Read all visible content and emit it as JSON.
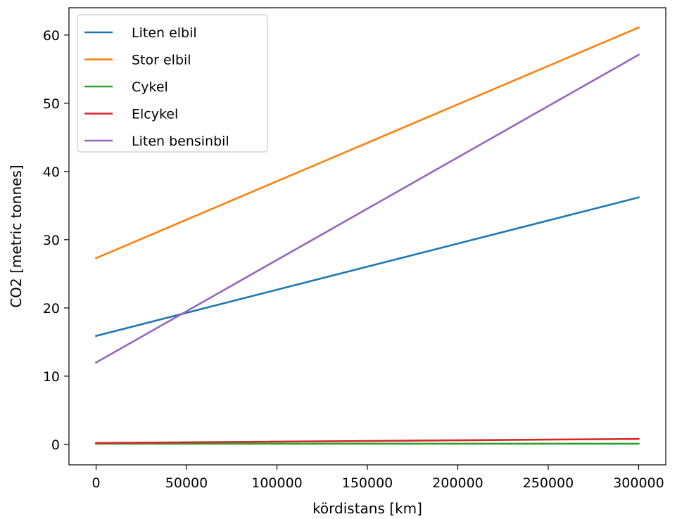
{
  "chart_data": {
    "type": "line",
    "title": "",
    "xlabel": "kördistans [km]",
    "ylabel": "CO2 [metric tonnes]",
    "xlim": [
      -15000,
      315000
    ],
    "ylim": [
      -3,
      64
    ],
    "xticks": [
      0,
      50000,
      100000,
      150000,
      200000,
      250000,
      300000
    ],
    "xtick_labels": [
      "0",
      "50000",
      "100000",
      "150000",
      "200000",
      "250000",
      "300000"
    ],
    "yticks": [
      0,
      10,
      20,
      30,
      40,
      50,
      60
    ],
    "ytick_labels": [
      "0",
      "10",
      "20",
      "30",
      "40",
      "50",
      "60"
    ],
    "grid": false,
    "legend_position": "top-left",
    "x": [
      0,
      300000
    ],
    "series": [
      {
        "name": "Liten elbil",
        "color": "#1f77b4",
        "values": [
          15.9,
          36.2
        ]
      },
      {
        "name": "Stor elbil",
        "color": "#ff7f0e",
        "values": [
          27.3,
          61.1
        ]
      },
      {
        "name": "Cykel",
        "color": "#2ca02c",
        "values": [
          0.1,
          0.1
        ]
      },
      {
        "name": "Elcykel",
        "color": "#d62728",
        "values": [
          0.2,
          0.8
        ]
      },
      {
        "name": "Liten bensinbil",
        "color": "#9467bd",
        "values": [
          12.0,
          57.1
        ]
      }
    ]
  }
}
